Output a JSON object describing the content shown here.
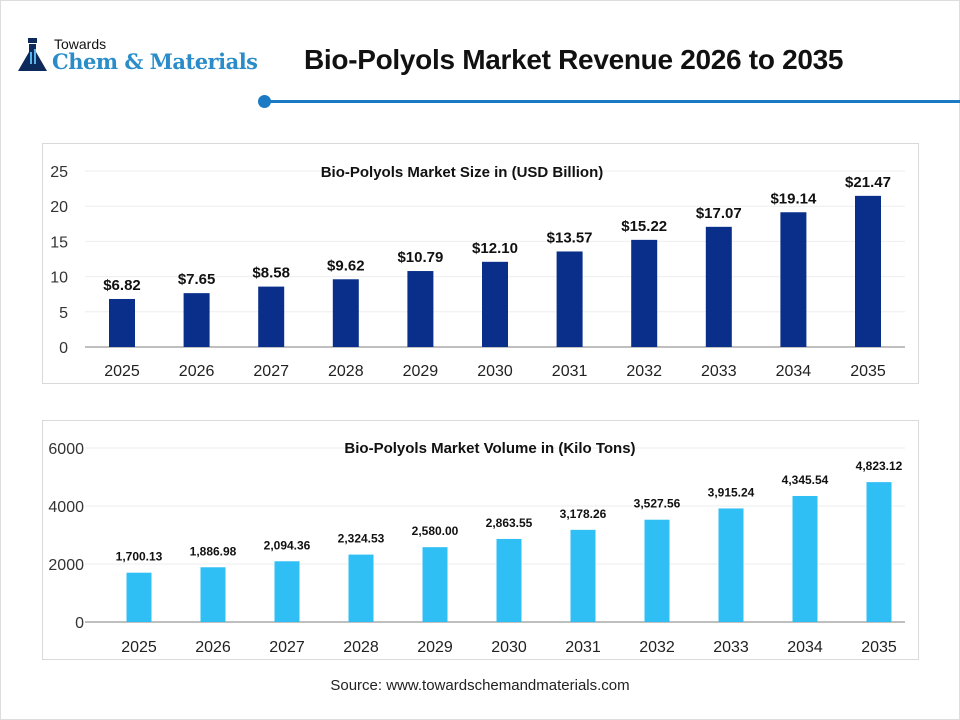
{
  "header": {
    "logo_top": "Towards",
    "logo_bottom": "Chem & Materials",
    "title": "Bio-Polyols Market Revenue 2026 to 2035"
  },
  "colors": {
    "accent": "#1a7bc4",
    "size_bar": "#0a2f8a",
    "volume_bar": "#2fbff5"
  },
  "chart_data": [
    {
      "type": "bar",
      "title": "Bio-Polyols Market Size in (USD Billion)",
      "categories": [
        "2025",
        "2026",
        "2027",
        "2028",
        "2029",
        "2030",
        "2031",
        "2032",
        "2033",
        "2034",
        "2035"
      ],
      "values": [
        6.82,
        7.65,
        8.58,
        9.62,
        10.79,
        12.1,
        13.57,
        15.22,
        17.07,
        19.14,
        21.47
      ],
      "labels": [
        "$6.82",
        "$7.65",
        "$8.58",
        "$9.62",
        "$10.79",
        "$12.10",
        "$13.57",
        "$15.22",
        "$17.07",
        "$19.14",
        "$21.47"
      ],
      "ylim": [
        0,
        25
      ],
      "yticks": [
        "0",
        "5",
        "10",
        "15",
        "20",
        "25"
      ],
      "grid": true
    },
    {
      "type": "bar",
      "title": "Bio-Polyols Market Volume in (Kilo Tons)",
      "categories": [
        "2025",
        "2026",
        "2027",
        "2028",
        "2029",
        "2030",
        "2031",
        "2032",
        "2033",
        "2034",
        "2035"
      ],
      "values": [
        1700.13,
        1886.98,
        2094.36,
        2324.53,
        2580.0,
        2863.55,
        3178.26,
        3527.56,
        3915.24,
        4345.54,
        4823.12
      ],
      "labels": [
        "1,700.13",
        "1,886.98",
        "2,094.36",
        "2,324.53",
        "2,580.00",
        "2,863.55",
        "3,178.26",
        "3,527.56",
        "3,915.24",
        "4,345.54",
        "4,823.12"
      ],
      "ylim": [
        0,
        6000
      ],
      "yticks": [
        "0",
        "2000",
        "4000",
        "6000"
      ],
      "grid": true
    }
  ],
  "source": "Source: www.towardschemandmaterials.com"
}
